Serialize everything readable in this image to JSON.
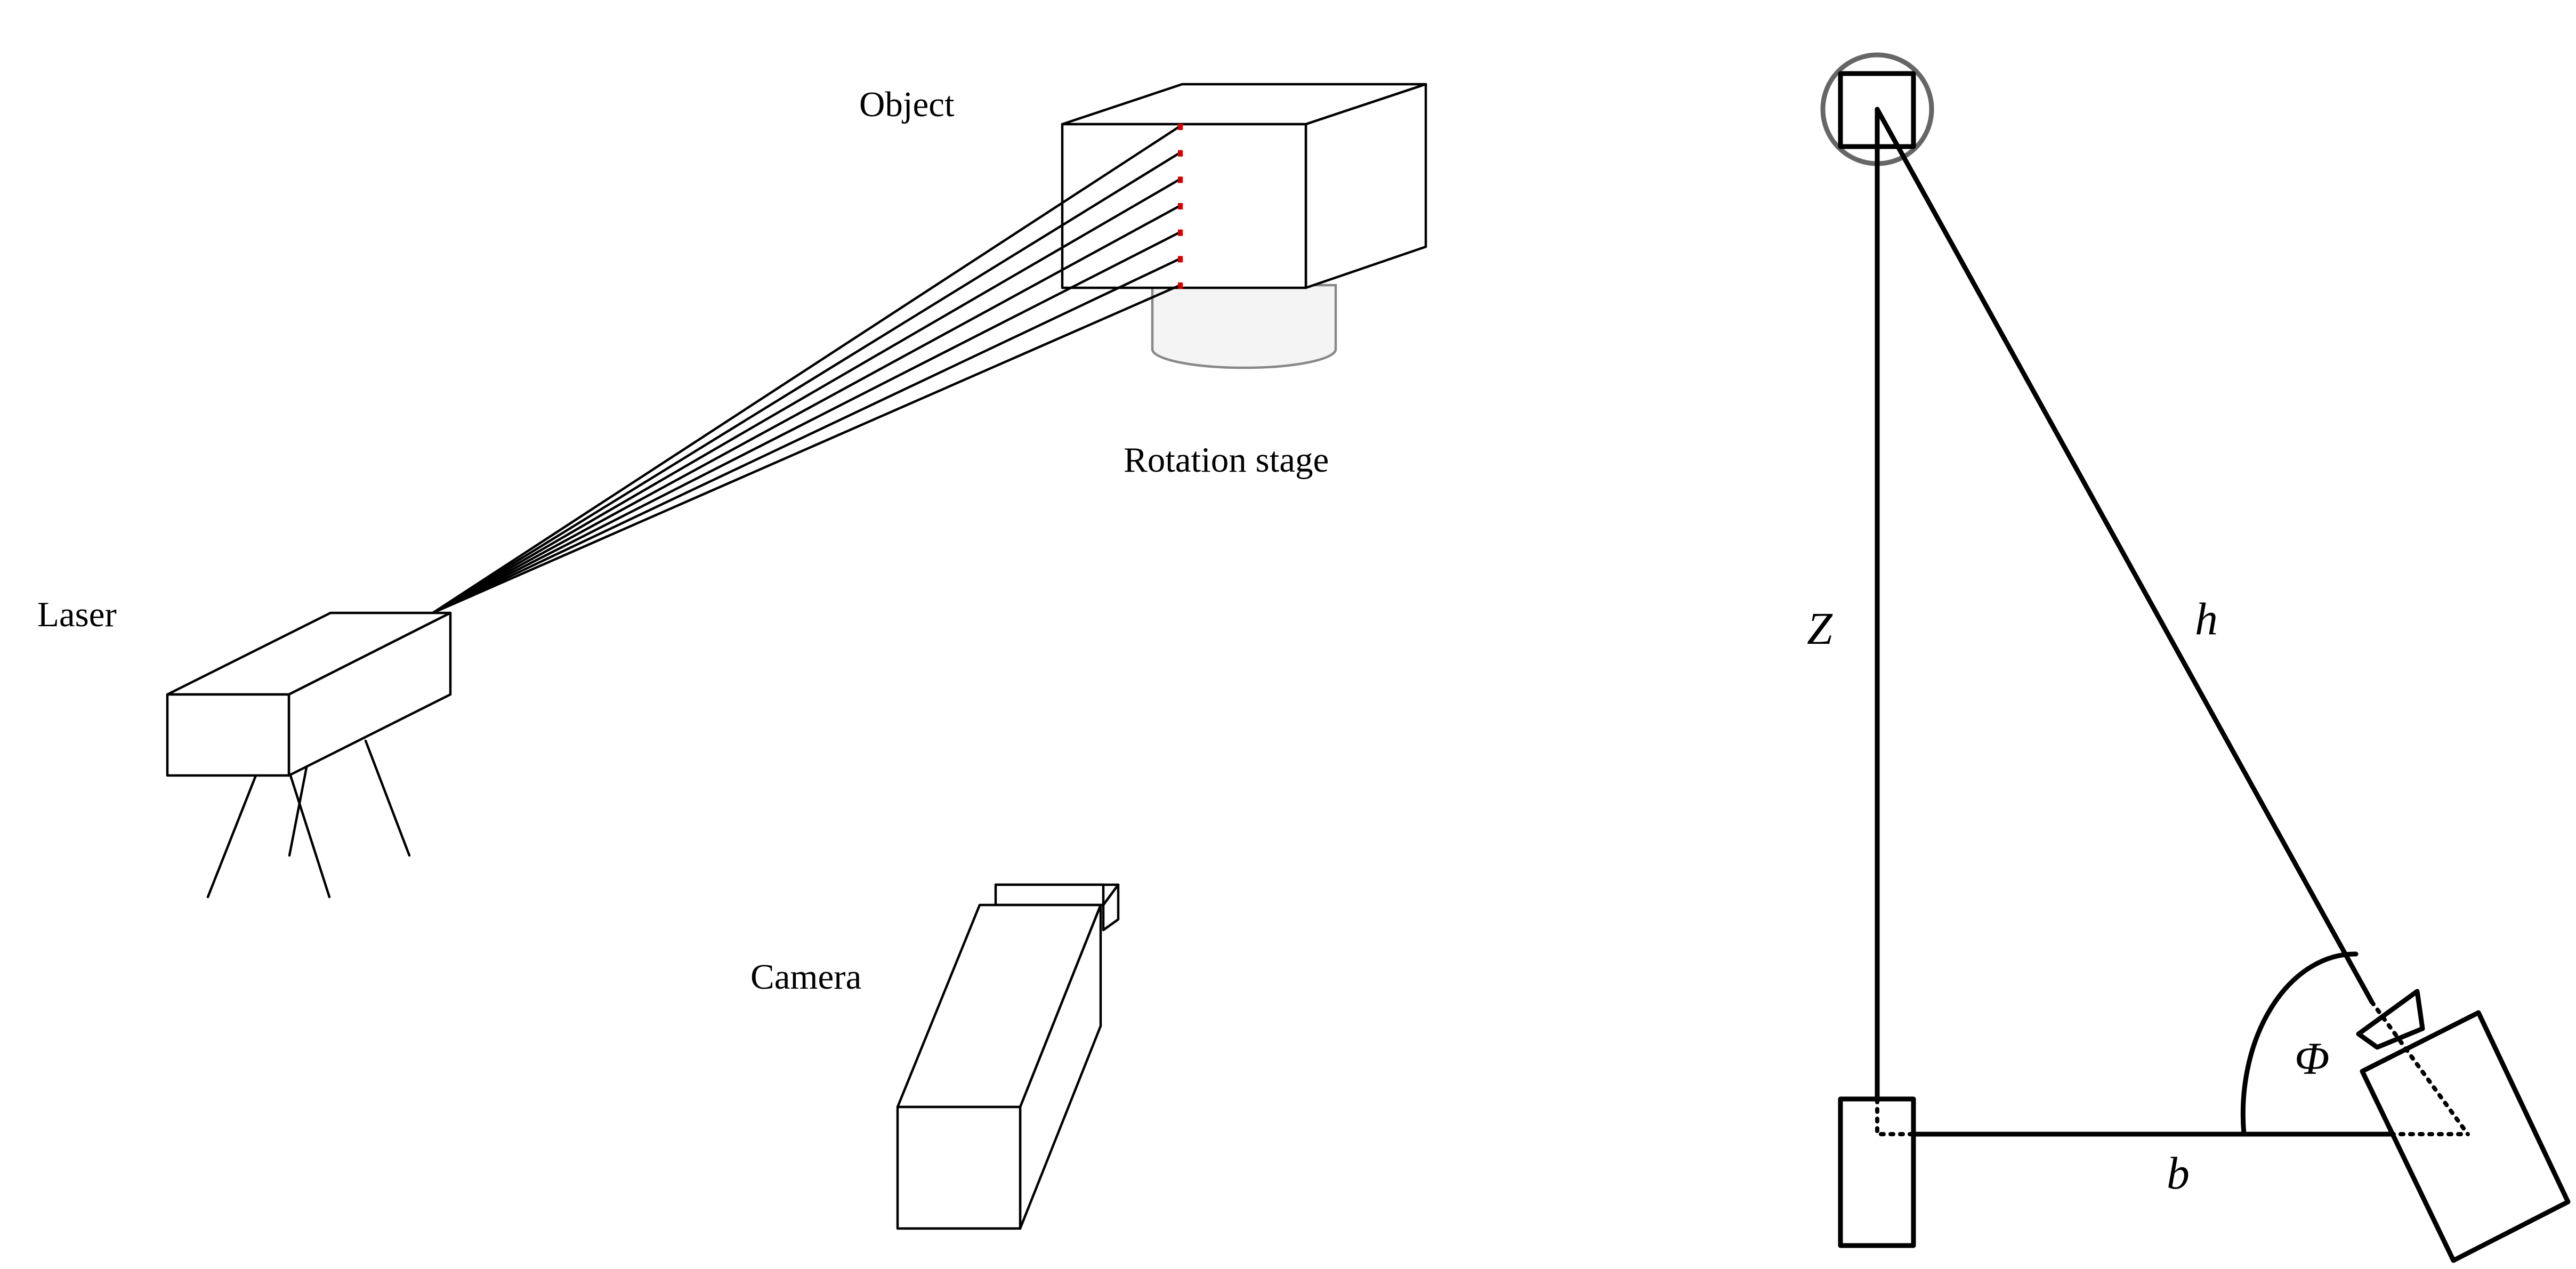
{
  "labels": {
    "object": "Object",
    "rotation_stage": "Rotation stage",
    "laser": "Laser",
    "camera": "Camera"
  },
  "symbols": {
    "z": "Z",
    "h": "h",
    "phi": "Φ",
    "b": "b"
  },
  "colors": {
    "line": "#000000",
    "laser_hit_marks": "#cc0000",
    "stage_fill": "#f4f4f4",
    "stage_outline": "#888888",
    "object_circle": "#666666"
  },
  "laser_beam_count": 7
}
